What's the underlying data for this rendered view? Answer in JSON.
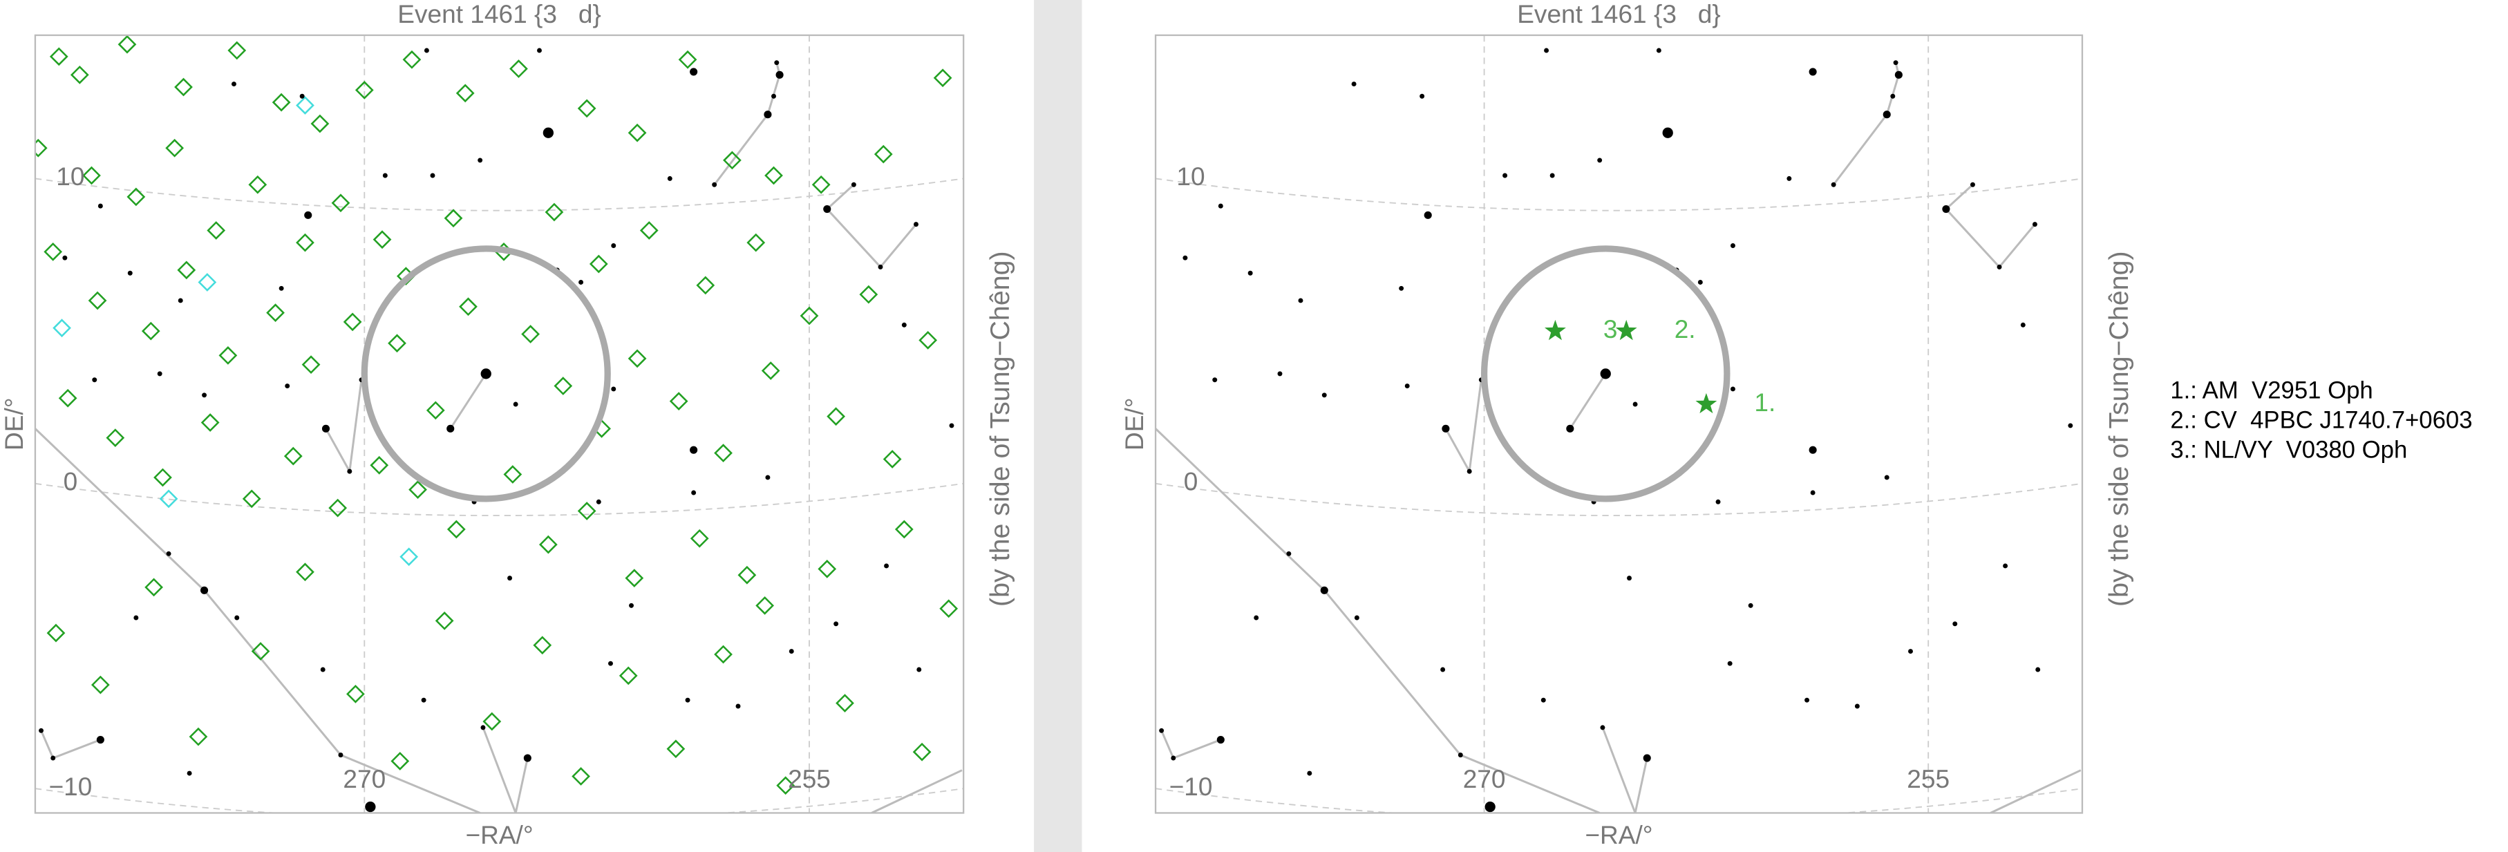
{
  "chart_data": [
    {
      "type": "scatter",
      "title": "Event 1461 {3   d}",
      "x_label": "−RA/°",
      "y_label": "DE/°",
      "side_label": "(by the side of Tsung−Chêng)",
      "xlim": [
        281.1,
        249.8
      ],
      "ylim": [
        -10.8,
        14.7
      ],
      "xticks": [
        270,
        255
      ],
      "yticks": [
        {
          "value": -10,
          "label": "−10"
        },
        0,
        10
      ],
      "grid": true,
      "stars": {
        "color": "#000000",
        "x": [
          258.9,
          256.1,
          256.0,
          256.2,
          256.4,
          263.8,
          274.4,
          272.1,
          267.9,
          264.1,
          259.7,
          258.2,
          269.3,
          267.7,
          266.1,
          271.9,
          278.9,
          280.1,
          277.9,
          276.2,
          272.8,
          261.6,
          263.5,
          262.7,
          265.9,
          267.1,
          264.9,
          271.3,
          270.5,
          270.1,
          272.6,
          275.4,
          276.9,
          279.1,
          254.4,
          253.5,
          251.4,
          252.6,
          250.2,
          251.8,
          258.9,
          258.9,
          256.4,
          262.1,
          261.6,
          275.4,
          276.6,
          274.3,
          277.7,
          270.8,
          269.8,
          264.5,
          266.0,
          268.0,
          265.1,
          261.7,
          259.1,
          252.4,
          257.4,
          251.3,
          280.9,
          280.5,
          278.9,
          275.9,
          271.4,
          254.1,
          255.6,
          261.0,
          266.3
        ],
        "y": [
          13.5,
          13.8,
          13.4,
          12.7,
          12.1,
          11.5,
          13.1,
          12.7,
          14.2,
          14.2,
          10.0,
          9.8,
          10.1,
          10.1,
          10.6,
          8.8,
          9.1,
          7.4,
          6.9,
          6.0,
          6.4,
          7.8,
          7.0,
          6.6,
          3.6,
          1.8,
          2.6,
          1.8,
          0.4,
          3.4,
          3.2,
          2.9,
          3.6,
          3.4,
          9.0,
          9.8,
          8.5,
          7.1,
          1.9,
          5.2,
          1.1,
          -0.3,
          0.2,
          -0.6,
          3.1,
          -3.5,
          -2.3,
          -4.4,
          -4.4,
          -8.9,
          -10.6,
          -9.0,
          -8.0,
          -7.1,
          -3.1,
          -5.9,
          -7.1,
          -2.7,
          -7.3,
          -6.1,
          -8.1,
          -9.0,
          -8.4,
          -9.5,
          -6.1,
          -4.6,
          -5.5,
          -4.0,
          -0.6
        ],
        "size": [
          2,
          1,
          2,
          1,
          2,
          3,
          1,
          1,
          1,
          1,
          1,
          1,
          1,
          1,
          1,
          2,
          1,
          1,
          1,
          1,
          1,
          1,
          1,
          1,
          3,
          2,
          1,
          2,
          1,
          1,
          1,
          1,
          1,
          1,
          2,
          1,
          1,
          1,
          1,
          1,
          2,
          1,
          1,
          1,
          1,
          2,
          1,
          1,
          1,
          1,
          3,
          2,
          1,
          1,
          1,
          1,
          1,
          1,
          1,
          1,
          1,
          1,
          2,
          1,
          1,
          1,
          1,
          1,
          1
        ]
      },
      "lines": [
        {
          "x": [
            281.1,
            275.4,
            270.8,
            266.1
          ],
          "y": [
            1.8,
            -3.5,
            -8.9,
            -10.8
          ]
        },
        {
          "x": [
            265.9,
            267.1
          ],
          "y": [
            3.6,
            1.8
          ]
        },
        {
          "x": [
            271.3,
            270.5,
            270.1
          ],
          "y": [
            1.8,
            0.4,
            3.4
          ]
        },
        {
          "x": [
            258.2,
            256.4,
            256.0,
            256.1
          ],
          "y": [
            9.8,
            12.1,
            13.4,
            13.8
          ]
        },
        {
          "x": [
            253.5,
            254.4,
            252.6,
            251.4
          ],
          "y": [
            9.8,
            9.0,
            7.1,
            8.5
          ]
        },
        {
          "x": [
            266.0,
            264.9,
            264.5
          ],
          "y": [
            -8.0,
            -10.8,
            -9.0
          ]
        },
        {
          "x": [
            280.9,
            280.5,
            278.9
          ],
          "y": [
            -8.1,
            -9.0,
            -8.4
          ]
        },
        {
          "x": [
            252.9,
            249.85
          ],
          "y": [
            -10.8,
            -9.4
          ]
        }
      ],
      "markers": [
        {
          "color": "#22a022",
          "x": [
            280.3,
            279.6,
            278.0,
            276.1,
            274.3,
            272.8,
            271.5,
            270.0,
            268.4,
            266.6,
            264.8,
            262.5,
            260.8,
            259.1,
            257.6,
            256.2,
            254.6,
            252.5,
            250.5,
            281.0,
            279.2,
            277.7,
            276.4,
            275.0,
            273.6,
            272.0,
            270.8,
            269.4,
            268.6,
            267.0,
            265.3,
            263.6,
            262.1,
            260.4,
            258.5,
            256.8,
            255.0,
            253.0,
            251.0,
            280.5,
            279.0,
            277.2,
            276.0,
            274.6,
            273.0,
            271.8,
            270.4,
            268.9,
            267.6,
            266.5,
            264.4,
            263.3,
            262.0,
            260.8,
            259.4,
            257.9,
            256.3,
            254.1,
            252.2,
            280.0,
            278.4,
            276.8,
            275.2,
            273.8,
            272.4,
            270.9,
            269.5,
            268.2,
            266.9,
            265.0,
            263.8,
            262.5,
            260.9,
            258.7,
            256.5,
            254.4,
            251.8,
            280.4,
            278.9,
            277.1,
            275.6,
            273.5,
            272.0,
            270.3,
            268.8,
            267.3,
            265.7,
            264.0,
            262.7,
            261.1,
            259.5,
            257.9,
            255.8,
            253.8,
            251.2,
            250.3,
            257.1
          ],
          "y": [
            14.0,
            13.4,
            14.4,
            13.0,
            14.2,
            12.5,
            11.8,
            12.9,
            13.9,
            12.8,
            13.6,
            12.3,
            11.5,
            13.9,
            10.6,
            10.1,
            9.8,
            10.8,
            13.3,
            11.0,
            10.1,
            9.4,
            11.0,
            8.3,
            9.8,
            7.9,
            9.2,
            8.0,
            6.8,
            8.7,
            7.6,
            8.9,
            7.2,
            8.3,
            6.5,
            7.9,
            5.5,
            6.2,
            4.7,
            7.6,
            6.0,
            5.0,
            7.0,
            4.2,
            5.6,
            3.9,
            5.3,
            4.6,
            2.4,
            5.8,
            4.9,
            3.2,
            1.8,
            4.1,
            2.7,
            1.0,
            3.7,
            2.2,
            0.8,
            2.8,
            1.5,
            0.2,
            2.0,
            -0.5,
            0.9,
            -0.8,
            0.6,
            -0.2,
            -1.5,
            0.3,
            -2.0,
            -0.9,
            -3.1,
            -1.8,
            -4.0,
            -2.8,
            -1.5,
            -4.9,
            -6.6,
            -3.4,
            -8.3,
            -5.5,
            -2.9,
            -6.9,
            -9.1,
            -4.5,
            -7.8,
            -5.3,
            -9.6,
            -6.3,
            -8.7,
            -5.6,
            -9.9,
            -7.2,
            -8.8,
            -4.1,
            -3.0
          ]
        },
        {
          "color": "#44dcdc",
          "x": [
            272.0,
            275.3,
            280.2,
            276.6,
            268.5
          ],
          "y": [
            12.4,
            6.6,
            5.1,
            -0.5,
            -2.4
          ]
        }
      ],
      "circle": {
        "x": 265.9,
        "y": 3.6,
        "r": 4.1,
        "color": "#aaaaaa"
      }
    },
    {
      "type": "scatter",
      "title": "Event 1461 {3   d}",
      "x_label": "−RA/°",
      "y_label": "DE/°",
      "side_label": "(by the side of Tsung−Chêng)",
      "xlim": [
        281.1,
        249.8
      ],
      "ylim": [
        -10.8,
        14.7
      ],
      "xticks": [
        270,
        255
      ],
      "yticks": [
        {
          "value": -10,
          "label": "−10"
        },
        0,
        10
      ],
      "grid": true,
      "stars": {
        "color": "#000000",
        "x": [
          258.9,
          256.1,
          256.0,
          256.2,
          256.4,
          263.8,
          274.4,
          272.1,
          267.9,
          264.1,
          259.7,
          258.2,
          269.3,
          267.7,
          266.1,
          271.9,
          278.9,
          280.1,
          277.9,
          276.2,
          272.8,
          261.6,
          263.5,
          262.7,
          265.9,
          267.1,
          264.9,
          271.3,
          270.5,
          270.1,
          272.6,
          275.4,
          276.9,
          279.1,
          254.4,
          253.5,
          251.4,
          252.6,
          250.2,
          251.8,
          258.9,
          258.9,
          256.4,
          262.1,
          261.6,
          275.4,
          276.6,
          274.3,
          277.7,
          270.8,
          269.8,
          264.5,
          266.0,
          268.0,
          265.1,
          261.7,
          259.1,
          252.4,
          257.4,
          251.3,
          280.9,
          280.5,
          278.9,
          275.9,
          271.4,
          254.1,
          255.6,
          261.0,
          266.3
        ],
        "y": [
          13.5,
          13.8,
          13.4,
          12.7,
          12.1,
          11.5,
          13.1,
          12.7,
          14.2,
          14.2,
          10.0,
          9.8,
          10.1,
          10.1,
          10.6,
          8.8,
          9.1,
          7.4,
          6.9,
          6.0,
          6.4,
          7.8,
          7.0,
          6.6,
          3.6,
          1.8,
          2.6,
          1.8,
          0.4,
          3.4,
          3.2,
          2.9,
          3.6,
          3.4,
          9.0,
          9.8,
          8.5,
          7.1,
          1.9,
          5.2,
          1.1,
          -0.3,
          0.2,
          -0.6,
          3.1,
          -3.5,
          -2.3,
          -4.4,
          -4.4,
          -8.9,
          -10.6,
          -9.0,
          -8.0,
          -7.1,
          -3.1,
          -5.9,
          -7.1,
          -2.7,
          -7.3,
          -6.1,
          -8.1,
          -9.0,
          -8.4,
          -9.5,
          -6.1,
          -4.6,
          -5.5,
          -4.0,
          -0.6
        ],
        "size": [
          2,
          1,
          2,
          1,
          2,
          3,
          1,
          1,
          1,
          1,
          1,
          1,
          1,
          1,
          1,
          2,
          1,
          1,
          1,
          1,
          1,
          1,
          1,
          1,
          3,
          2,
          1,
          2,
          1,
          1,
          1,
          1,
          1,
          1,
          2,
          1,
          1,
          1,
          1,
          1,
          2,
          1,
          1,
          1,
          1,
          2,
          1,
          1,
          1,
          1,
          3,
          2,
          1,
          1,
          1,
          1,
          1,
          1,
          1,
          1,
          1,
          1,
          2,
          1,
          1,
          1,
          1,
          1,
          1
        ]
      },
      "lines": [
        {
          "x": [
            281.1,
            275.4,
            270.8,
            266.1
          ],
          "y": [
            1.8,
            -3.5,
            -8.9,
            -10.8
          ]
        },
        {
          "x": [
            265.9,
            267.1
          ],
          "y": [
            3.6,
            1.8
          ]
        },
        {
          "x": [
            271.3,
            270.5,
            270.1
          ],
          "y": [
            1.8,
            0.4,
            3.4
          ]
        },
        {
          "x": [
            258.2,
            256.4,
            256.0,
            256.1
          ],
          "y": [
            9.8,
            12.1,
            13.4,
            13.8
          ]
        },
        {
          "x": [
            253.5,
            254.4,
            252.6,
            251.4
          ],
          "y": [
            9.8,
            9.0,
            7.1,
            8.5
          ]
        },
        {
          "x": [
            266.0,
            264.9,
            264.5
          ],
          "y": [
            -8.0,
            -10.8,
            -9.0
          ]
        },
        {
          "x": [
            280.9,
            280.5,
            278.9
          ],
          "y": [
            -8.1,
            -9.0,
            -8.4
          ]
        },
        {
          "x": [
            252.9,
            249.85
          ],
          "y": [
            -10.8,
            -9.4
          ]
        }
      ],
      "circle": {
        "x": 265.9,
        "y": 3.6,
        "r": 4.1,
        "color": "#aaaaaa"
      },
      "objects": {
        "color": "#2e9e2e",
        "label_color": "#55bb55",
        "x": [
          262.5,
          265.2,
          267.6
        ],
        "y": [
          2.6,
          5.0,
          5.0
        ],
        "labels": [
          "1.",
          "2.",
          "3"
        ]
      },
      "legend": [
        "1.: AM  V2951 Oph",
        "2.: CV  4PBC J1740.7+0603",
        "3.: NL/VY  V0380 Oph"
      ]
    }
  ]
}
